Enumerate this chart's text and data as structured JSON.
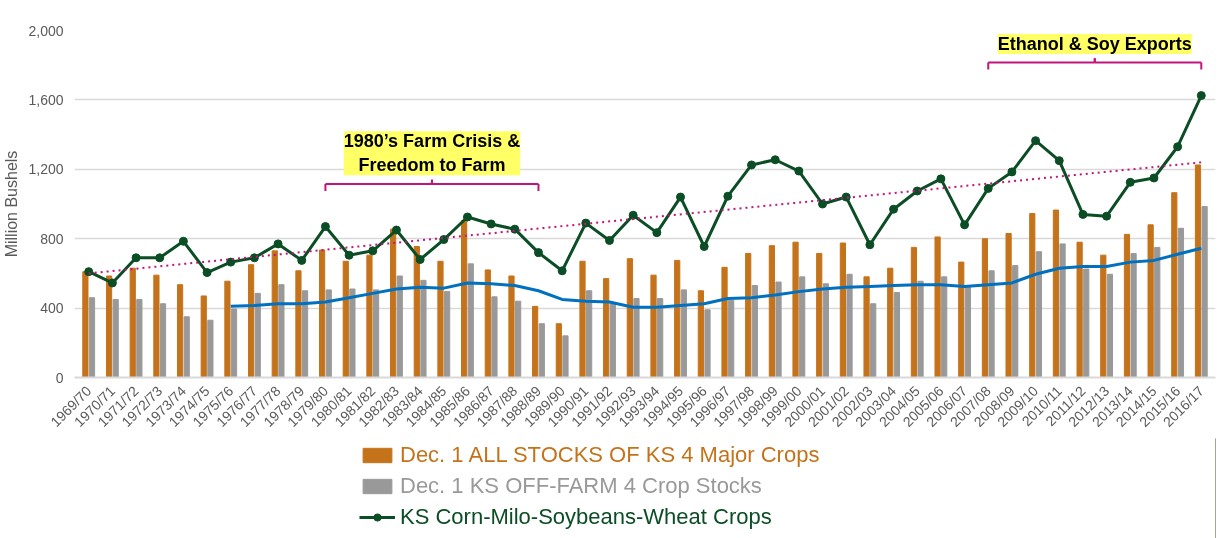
{
  "chart_data": {
    "type": "bar",
    "ylabel": "Million Bushels",
    "categories": [
      "1969/70",
      "1970/71",
      "1971/72",
      "1972/73",
      "1973/74",
      "1974/75",
      "1975/76",
      "1976/77",
      "1977/78",
      "1978/79",
      "1979/80",
      "1980/81",
      "1981/82",
      "1982/83",
      "1983/84",
      "1984/85",
      "1985/86",
      "1986/87",
      "1987/88",
      "1988/89",
      "1989/90",
      "1990/91",
      "1991/92",
      "1992/93",
      "1993/94",
      "1994/95",
      "1995/96",
      "1996/97",
      "1997/98",
      "1998/99",
      "1999/00",
      "2000/01",
      "2001/02",
      "2002/03",
      "2003/04",
      "2004/05",
      "2005/06",
      "2006/07",
      "2007/08",
      "2008/09",
      "2009/10",
      "2010/11",
      "2011/12",
      "2012/13",
      "2013/14",
      "2014/15",
      "2015/16",
      "2016/17"
    ],
    "series": [
      {
        "name": "Dec. 1 ALL STOCKS OF KS 4 Major Crops",
        "color": "#c5731b",
        "values": [
          610,
          585,
          630,
          590,
          535,
          470,
          555,
          650,
          730,
          615,
          735,
          670,
          705,
          855,
          755,
          670,
          905,
          620,
          585,
          410,
          310,
          670,
          570,
          685,
          590,
          675,
          500,
          635,
          715,
          760,
          780,
          715,
          775,
          580,
          630,
          750,
          810,
          665,
          800,
          830,
          945,
          965,
          780,
          705,
          825,
          880,
          1065,
          1225
        ]
      },
      {
        "name": "Dec. 1 KS OFF-FARM 4 Crop Stocks",
        "color": "#999999",
        "values": [
          460,
          450,
          450,
          425,
          350,
          330,
          395,
          485,
          535,
          500,
          505,
          510,
          505,
          585,
          560,
          495,
          655,
          465,
          440,
          310,
          240,
          500,
          425,
          455,
          455,
          505,
          390,
          445,
          530,
          550,
          580,
          540,
          595,
          425,
          490,
          555,
          580,
          520,
          615,
          645,
          725,
          770,
          625,
          595,
          715,
          750,
          860,
          985
        ]
      },
      {
        "name": "KS Corn-Milo-Soybeans-Wheat Crops",
        "type": "line",
        "color": "#0b4d24",
        "marker": "circle",
        "values": [
          610,
          545,
          690,
          690,
          785,
          605,
          665,
          690,
          770,
          675,
          870,
          705,
          730,
          850,
          680,
          795,
          925,
          885,
          855,
          720,
          615,
          890,
          790,
          935,
          835,
          1040,
          755,
          1045,
          1225,
          1255,
          1190,
          1000,
          1040,
          765,
          970,
          1075,
          1145,
          880,
          1090,
          1185,
          1365,
          1250,
          940,
          930,
          1125,
          1150,
          1330,
          1625
        ]
      },
      {
        "type": "line",
        "color": "#0070c0",
        "values": [
          null,
          null,
          null,
          null,
          null,
          null,
          410,
          415,
          425,
          425,
          435,
          460,
          485,
          510,
          520,
          515,
          545,
          540,
          530,
          500,
          450,
          440,
          435,
          405,
          405,
          415,
          425,
          455,
          460,
          475,
          495,
          510,
          520,
          525,
          530,
          535,
          535,
          525,
          535,
          545,
          595,
          630,
          640,
          640,
          665,
          675,
          710,
          745
        ]
      },
      {
        "type": "line",
        "color": "#c0157a",
        "line_style": "dotted",
        "x": [
          "1969/70",
          "2016/17"
        ],
        "values": [
          600,
          1240
        ]
      }
    ],
    "ylim": [
      0,
      2000
    ],
    "yticks": [
      0,
      400,
      800,
      {
        "value": 1200,
        "label": "1,200"
      },
      {
        "value": 1600,
        "label": "1,600"
      },
      {
        "value": 2000,
        "label": "2,000"
      }
    ],
    "grid": "y",
    "legend": "bottom",
    "annotations": [
      "1980’s Farm Crisis &\nFreedom to Farm",
      "Ethanol & Soy Exports"
    ]
  }
}
